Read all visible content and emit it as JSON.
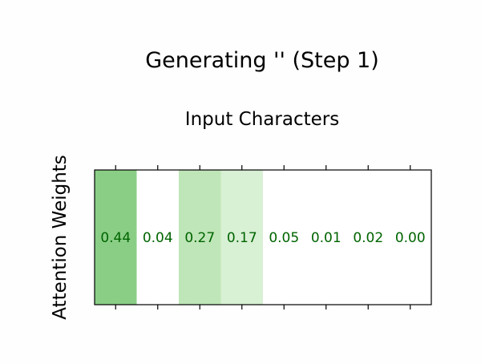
{
  "chart_data": {
    "type": "heatmap",
    "title": "Generating '' (Step 1)",
    "xlabel": "Input Characters",
    "ylabel": "Attention Weights",
    "x_tick_labels": [
      "",
      "",
      "",
      "",
      "",
      "",
      "",
      ""
    ],
    "values": [
      0.44,
      0.04,
      0.27,
      0.17,
      0.05,
      0.01,
      0.02,
      0.0
    ],
    "value_labels": [
      "0.44",
      "0.04",
      "0.27",
      "0.17",
      "0.05",
      "0.01",
      "0.02",
      "0.00"
    ],
    "color_scale": {
      "min": 0,
      "max": 1,
      "low_color": "#ffffff",
      "high_color": "#0a7a20"
    },
    "value_label_color": "#006400",
    "grid": false
  }
}
